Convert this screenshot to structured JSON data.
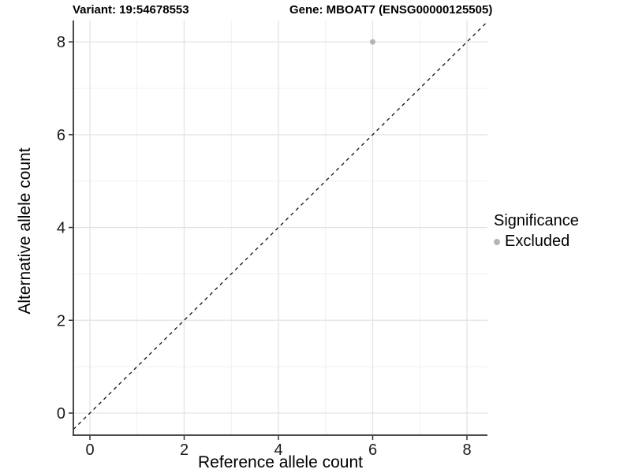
{
  "header": {
    "variant_title": "Variant: 19:54678553",
    "gene_title": "Gene: MBOAT7 (ENSG00000125505)"
  },
  "axes": {
    "x_label": "Reference allele count",
    "y_label": "Alternative allele count"
  },
  "legend": {
    "title": "Significance",
    "items": [
      {
        "label": "Excluded",
        "color": "#b5b5b5"
      }
    ]
  },
  "colors": {
    "background": "#ffffff",
    "grid_major": "#e3e3e3",
    "grid_minor": "#f0f0f0",
    "axis_line": "#333333",
    "tick_mark": "#333333",
    "tick_label": "#1a1a1a",
    "reference_line": "#111111",
    "point": "#b5b5b5"
  },
  "chart_data": {
    "type": "scatter",
    "title": "Variant: 19:54678553  /  Gene: MBOAT7 (ENSG00000125505)",
    "xlabel": "Reference allele count",
    "ylabel": "Alternative allele count",
    "xlim": [
      -0.35,
      8.45
    ],
    "ylim": [
      -0.5,
      8.45
    ],
    "x_ticks": [
      0,
      2,
      4,
      6,
      8
    ],
    "y_ticks": [
      0,
      2,
      4,
      6,
      8
    ],
    "x_minor_ticks": [
      1,
      3,
      5,
      7
    ],
    "y_minor_ticks": [
      1,
      3,
      5,
      7
    ],
    "grid": true,
    "legend_position": "right",
    "series": [
      {
        "name": "Excluded",
        "color": "#b5b5b5",
        "points": [
          {
            "x": 6,
            "y": 8
          }
        ]
      }
    ],
    "reference_line": {
      "type": "identity",
      "slope": 1,
      "intercept": 0,
      "style": "dashed",
      "color": "#111111"
    }
  }
}
